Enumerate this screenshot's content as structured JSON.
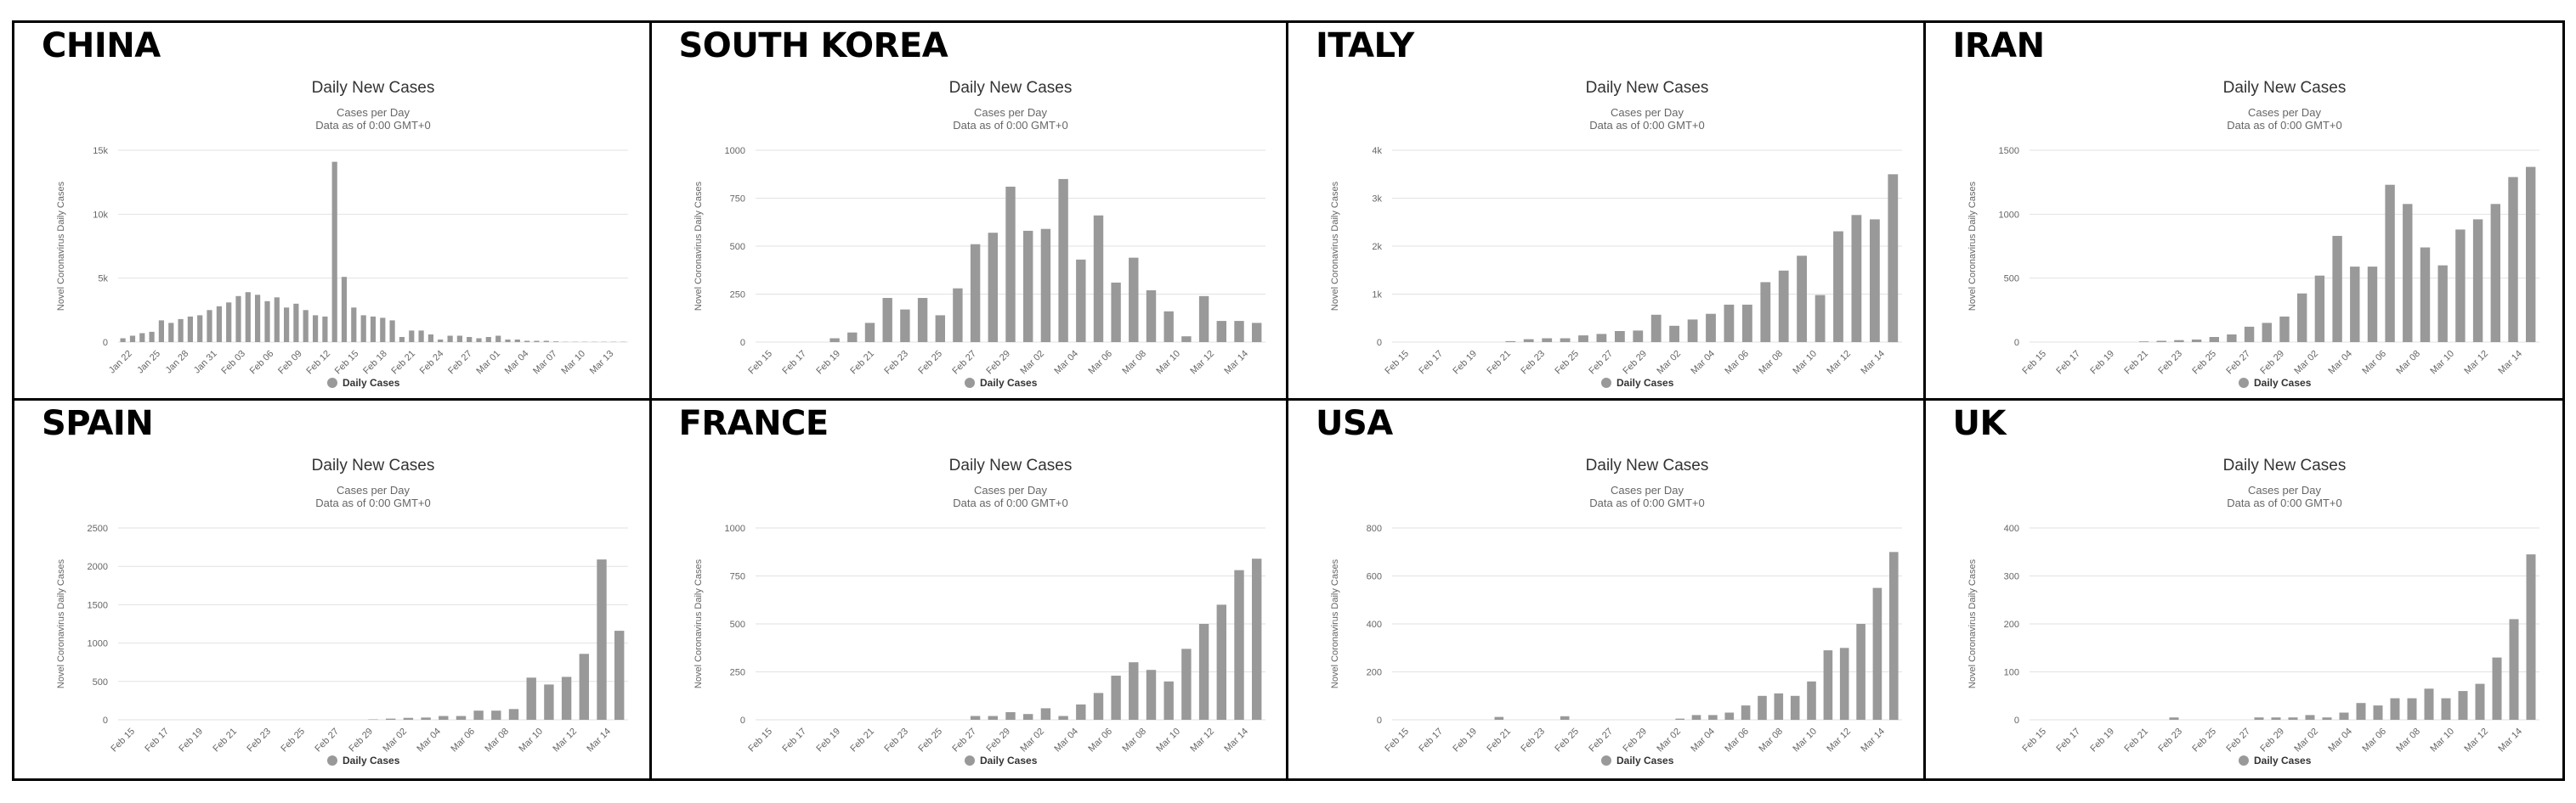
{
  "colors": {
    "bar": "#999999",
    "axis_text": "#666666",
    "grid": "#e2e2e2",
    "title": "#333333",
    "border": "#000000"
  },
  "chart_data": [
    {
      "country": "CHINA",
      "type": "bar",
      "title": "Daily New Cases",
      "subtitle": "Cases per Day",
      "subtitle2": "Data as of 0:00 GMT+0",
      "ylabel": "Novel Coronavirus Daily Cases",
      "legend": "Daily Cases",
      "ylim": [
        0,
        15000
      ],
      "yticks": [
        0,
        5000,
        10000,
        15000
      ],
      "ytick_labels": [
        "0",
        "5k",
        "10k",
        "15k"
      ],
      "xtick_labels": [
        "Jan 22",
        "Jan 25",
        "Jan 28",
        "Jan 31",
        "Feb 03",
        "Feb 06",
        "Feb 09",
        "Feb 12",
        "Feb 15",
        "Feb 18",
        "Feb 21",
        "Feb 24",
        "Feb 27",
        "Mar 01",
        "Mar 04",
        "Mar 07",
        "Mar 10",
        "Mar 13"
      ],
      "values": [
        300,
        500,
        700,
        800,
        1700,
        1500,
        1800,
        2000,
        2100,
        2500,
        2800,
        3100,
        3600,
        3900,
        3700,
        3200,
        3500,
        2700,
        3000,
        2500,
        2100,
        2000,
        14100,
        5100,
        2700,
        2100,
        2000,
        1900,
        1700,
        400,
        900,
        900,
        600,
        200,
        500,
        500,
        400,
        300,
        400,
        500,
        200,
        200,
        100,
        100,
        100,
        50,
        20,
        20,
        20,
        20,
        20,
        20,
        20
      ]
    },
    {
      "country": "SOUTH KOREA",
      "type": "bar",
      "title": "Daily New Cases",
      "subtitle": "Cases per Day",
      "subtitle2": "Data as of 0:00 GMT+0",
      "ylabel": "Novel Coronavirus Daily Cases",
      "legend": "Daily Cases",
      "ylim": [
        0,
        1000
      ],
      "yticks": [
        0,
        250,
        500,
        750,
        1000
      ],
      "ytick_labels": [
        "0",
        "250",
        "500",
        "750",
        "1000"
      ],
      "xtick_labels": [
        "Feb 15",
        "Feb 17",
        "Feb 19",
        "Feb 21",
        "Feb 23",
        "Feb 25",
        "Feb 27",
        "Feb 29",
        "Mar 02",
        "Mar 04",
        "Mar 06",
        "Mar 08",
        "Mar 10",
        "Mar 12",
        "Mar 14"
      ],
      "values": [
        0,
        0,
        0,
        0,
        20,
        50,
        100,
        230,
        170,
        230,
        140,
        280,
        510,
        570,
        810,
        580,
        590,
        850,
        430,
        660,
        310,
        440,
        270,
        160,
        30,
        240,
        110,
        110,
        100
      ]
    },
    {
      "country": "ITALY",
      "type": "bar",
      "title": "Daily New Cases",
      "subtitle": "Cases per Day",
      "subtitle2": "Data as of 0:00 GMT+0",
      "ylabel": "Novel Coronavirus Daily Cases",
      "legend": "Daily Cases",
      "ylim": [
        0,
        4000
      ],
      "yticks": [
        0,
        1000,
        2000,
        3000,
        4000
      ],
      "ytick_labels": [
        "0",
        "1k",
        "2k",
        "3k",
        "4k"
      ],
      "xtick_labels": [
        "Feb 15",
        "Feb 17",
        "Feb 19",
        "Feb 21",
        "Feb 23",
        "Feb 25",
        "Feb 27",
        "Feb 29",
        "Mar 02",
        "Mar 04",
        "Mar 06",
        "Mar 08",
        "Mar 10",
        "Mar 12",
        "Mar 14"
      ],
      "values": [
        0,
        0,
        0,
        0,
        0,
        0,
        20,
        60,
        80,
        80,
        140,
        170,
        230,
        240,
        570,
        340,
        470,
        590,
        780,
        780,
        1250,
        1490,
        1800,
        980,
        2310,
        2650,
        2560,
        3500
      ]
    },
    {
      "country": "IRAN",
      "type": "bar",
      "title": "Daily New Cases",
      "subtitle": "Cases per Day",
      "subtitle2": "Data as of 0:00 GMT+0",
      "ylabel": "Novel Coronavirus Daily Cases",
      "legend": "Daily Cases",
      "ylim": [
        0,
        1500
      ],
      "yticks": [
        0,
        500,
        1000,
        1500
      ],
      "ytick_labels": [
        "0",
        "500",
        "1000",
        "1500"
      ],
      "xtick_labels": [
        "Feb 15",
        "Feb 17",
        "Feb 19",
        "Feb 21",
        "Feb 23",
        "Feb 25",
        "Feb 27",
        "Feb 29",
        "Mar 02",
        "Mar 04",
        "Mar 06",
        "Mar 08",
        "Mar 10",
        "Mar 12",
        "Mar 14"
      ],
      "values": [
        0,
        0,
        0,
        0,
        0,
        0,
        5,
        10,
        15,
        20,
        40,
        60,
        120,
        150,
        200,
        380,
        520,
        830,
        590,
        590,
        1230,
        1080,
        740,
        600,
        880,
        960,
        1080,
        1290,
        1370
      ]
    },
    {
      "country": "SPAIN",
      "type": "bar",
      "title": "Daily New Cases",
      "subtitle": "Cases per Day",
      "subtitle2": "Data as of 0:00 GMT+0",
      "ylabel": "Novel Coronavirus Daily Cases",
      "legend": "Daily Cases",
      "ylim": [
        0,
        2500
      ],
      "yticks": [
        0,
        500,
        1000,
        1500,
        2000,
        2500
      ],
      "ytick_labels": [
        "0",
        "500",
        "1000",
        "1500",
        "2000",
        "2500"
      ],
      "xtick_labels": [
        "Feb 15",
        "Feb 17",
        "Feb 19",
        "Feb 21",
        "Feb 23",
        "Feb 25",
        "Feb 27",
        "Feb 29",
        "Mar 02",
        "Mar 04",
        "Mar 06",
        "Mar 08",
        "Mar 10",
        "Mar 12",
        "Mar 14"
      ],
      "values": [
        0,
        0,
        0,
        0,
        0,
        0,
        0,
        0,
        0,
        0,
        0,
        0,
        0,
        0,
        5,
        15,
        25,
        30,
        50,
        50,
        120,
        120,
        140,
        550,
        460,
        560,
        860,
        2090,
        1160
      ]
    },
    {
      "country": "FRANCE",
      "type": "bar",
      "title": "Daily New Cases",
      "subtitle": "Cases per Day",
      "subtitle2": "Data as of 0:00 GMT+0",
      "ylabel": "Novel Coronavirus Daily Cases",
      "legend": "Daily Cases",
      "ylim": [
        0,
        1000
      ],
      "yticks": [
        0,
        250,
        500,
        750,
        1000
      ],
      "ytick_labels": [
        "0",
        "250",
        "500",
        "750",
        "1000"
      ],
      "xtick_labels": [
        "Feb 15",
        "Feb 17",
        "Feb 19",
        "Feb 21",
        "Feb 23",
        "Feb 25",
        "Feb 27",
        "Feb 29",
        "Mar 02",
        "Mar 04",
        "Mar 06",
        "Mar 08",
        "Mar 10",
        "Mar 12",
        "Mar 14"
      ],
      "values": [
        0,
        0,
        0,
        0,
        0,
        0,
        0,
        0,
        0,
        0,
        0,
        0,
        20,
        20,
        40,
        30,
        60,
        20,
        80,
        140,
        230,
        300,
        260,
        200,
        370,
        500,
        600,
        780,
        840
      ]
    },
    {
      "country": "USA",
      "type": "bar",
      "title": "Daily New Cases",
      "subtitle": "Cases per Day",
      "subtitle2": "Data as of 0:00 GMT+0",
      "ylabel": "Novel Coronavirus Daily Cases",
      "legend": "Daily Cases",
      "ylim": [
        0,
        800
      ],
      "yticks": [
        0,
        200,
        400,
        600,
        800
      ],
      "ytick_labels": [
        "0",
        "200",
        "400",
        "600",
        "800"
      ],
      "xtick_labels": [
        "Feb 15",
        "Feb 17",
        "Feb 19",
        "Feb 21",
        "Feb 23",
        "Feb 25",
        "Feb 27",
        "Feb 29",
        "Mar 02",
        "Mar 04",
        "Mar 06",
        "Mar 08",
        "Mar 10",
        "Mar 12",
        "Mar 14"
      ],
      "values": [
        0,
        0,
        0,
        0,
        0,
        0,
        12,
        0,
        0,
        0,
        15,
        0,
        0,
        0,
        0,
        0,
        0,
        5,
        20,
        20,
        30,
        60,
        100,
        110,
        100,
        160,
        290,
        300,
        400,
        550,
        700
      ]
    },
    {
      "country": "UK",
      "type": "bar",
      "title": "Daily New Cases",
      "subtitle": "Cases per Day",
      "subtitle2": "Data as of 0:00 GMT+0",
      "ylabel": "Novel Coronavirus Daily Cases",
      "legend": "Daily Cases",
      "ylim": [
        0,
        400
      ],
      "yticks": [
        0,
        100,
        200,
        300,
        400
      ],
      "ytick_labels": [
        "0",
        "100",
        "200",
        "300",
        "400"
      ],
      "xtick_labels": [
        "Feb 15",
        "Feb 17",
        "Feb 19",
        "Feb 21",
        "Feb 23",
        "Feb 25",
        "Feb 27",
        "Feb 29",
        "Mar 02",
        "Mar 04",
        "Mar 06",
        "Mar 08",
        "Mar 10",
        "Mar 12",
        "Mar 14"
      ],
      "values": [
        0,
        0,
        0,
        0,
        0,
        0,
        0,
        0,
        5,
        0,
        0,
        0,
        0,
        5,
        5,
        5,
        10,
        5,
        15,
        35,
        30,
        45,
        45,
        65,
        45,
        60,
        75,
        130,
        210,
        345
      ]
    }
  ]
}
